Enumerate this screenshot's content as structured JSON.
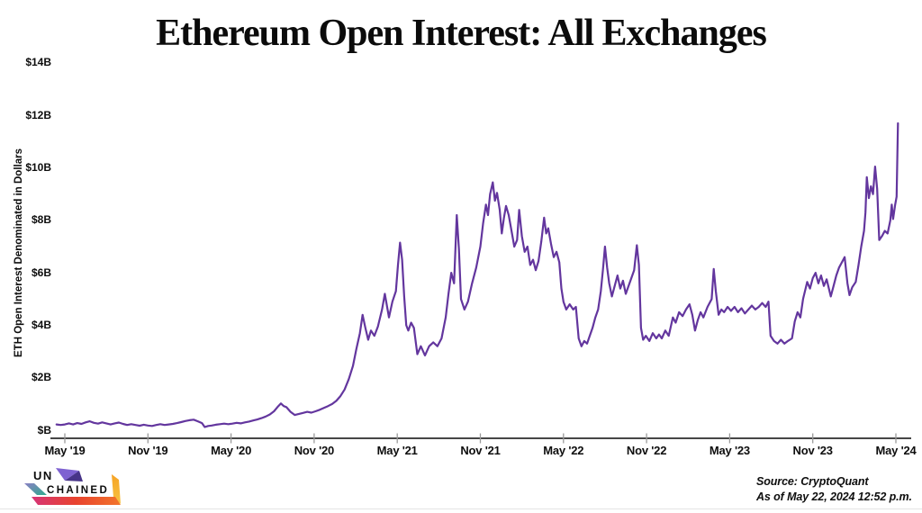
{
  "title": "Ethereum Open Interest: All Exchanges",
  "chart_data": {
    "type": "line",
    "title": "Ethereum Open Interest: All Exchanges",
    "ylabel": "ETH Open Interest Denominated in Dollars",
    "xlabel": "",
    "x_unit": "months since May 2019",
    "y_unit": "USD billions",
    "ylim": [
      0,
      14
    ],
    "xlim": [
      -0.6,
      60.2
    ],
    "grid": false,
    "legend": null,
    "line_color": "#63369e",
    "y_tick_labels": [
      "$B",
      "$2B",
      "$4B",
      "$6B",
      "$8B",
      "$10B",
      "$12B",
      "$14B"
    ],
    "x_tick_labels": [
      "May '19",
      "Nov '19",
      "May '20",
      "Nov '20",
      "May '21",
      "Nov '21",
      "May '22",
      "Nov '22",
      "May '23",
      "Nov '23",
      "May '24"
    ],
    "points": [
      [
        -0.6,
        0.22
      ],
      [
        -0.3,
        0.2
      ],
      [
        0,
        0.22
      ],
      [
        0.3,
        0.26
      ],
      [
        0.6,
        0.22
      ],
      [
        0.9,
        0.27
      ],
      [
        1.2,
        0.24
      ],
      [
        1.5,
        0.3
      ],
      [
        1.8,
        0.34
      ],
      [
        2.1,
        0.28
      ],
      [
        2.4,
        0.25
      ],
      [
        2.7,
        0.3
      ],
      [
        3,
        0.26
      ],
      [
        3.3,
        0.22
      ],
      [
        3.6,
        0.26
      ],
      [
        3.9,
        0.29
      ],
      [
        4.2,
        0.24
      ],
      [
        4.5,
        0.2
      ],
      [
        4.8,
        0.23
      ],
      [
        5.1,
        0.2
      ],
      [
        5.4,
        0.17
      ],
      [
        5.7,
        0.21
      ],
      [
        6,
        0.18
      ],
      [
        6.3,
        0.16
      ],
      [
        6.6,
        0.2
      ],
      [
        6.9,
        0.23
      ],
      [
        7.2,
        0.2
      ],
      [
        7.5,
        0.22
      ],
      [
        7.8,
        0.24
      ],
      [
        8.1,
        0.27
      ],
      [
        8.4,
        0.31
      ],
      [
        8.7,
        0.35
      ],
      [
        9,
        0.38
      ],
      [
        9.3,
        0.4
      ],
      [
        9.6,
        0.34
      ],
      [
        9.9,
        0.27
      ],
      [
        10.1,
        0.12
      ],
      [
        10.35,
        0.16
      ],
      [
        10.6,
        0.18
      ],
      [
        10.9,
        0.21
      ],
      [
        11.2,
        0.23
      ],
      [
        11.5,
        0.25
      ],
      [
        11.8,
        0.23
      ],
      [
        12.1,
        0.25
      ],
      [
        12.4,
        0.28
      ],
      [
        12.7,
        0.26
      ],
      [
        13,
        0.3
      ],
      [
        13.3,
        0.33
      ],
      [
        13.6,
        0.37
      ],
      [
        13.9,
        0.41
      ],
      [
        14.2,
        0.46
      ],
      [
        14.5,
        0.52
      ],
      [
        14.8,
        0.6
      ],
      [
        15.1,
        0.72
      ],
      [
        15.35,
        0.88
      ],
      [
        15.6,
        1.02
      ],
      [
        15.8,
        0.92
      ],
      [
        16,
        0.88
      ],
      [
        16.3,
        0.7
      ],
      [
        16.6,
        0.58
      ],
      [
        16.9,
        0.62
      ],
      [
        17.2,
        0.66
      ],
      [
        17.5,
        0.7
      ],
      [
        17.8,
        0.67
      ],
      [
        18.1,
        0.72
      ],
      [
        18.4,
        0.78
      ],
      [
        18.7,
        0.85
      ],
      [
        19,
        0.92
      ],
      [
        19.3,
        1
      ],
      [
        19.6,
        1.12
      ],
      [
        19.9,
        1.3
      ],
      [
        20.2,
        1.55
      ],
      [
        20.5,
        1.95
      ],
      [
        20.8,
        2.45
      ],
      [
        21.05,
        3.1
      ],
      [
        21.3,
        3.7
      ],
      [
        21.5,
        4.4
      ],
      [
        21.7,
        3.9
      ],
      [
        21.9,
        3.45
      ],
      [
        22.1,
        3.8
      ],
      [
        22.35,
        3.6
      ],
      [
        22.6,
        3.95
      ],
      [
        22.9,
        4.6
      ],
      [
        23.1,
        5.2
      ],
      [
        23.4,
        4.3
      ],
      [
        23.65,
        4.9
      ],
      [
        23.9,
        5.3
      ],
      [
        24.05,
        6.3
      ],
      [
        24.2,
        7.15
      ],
      [
        24.35,
        6.5
      ],
      [
        24.5,
        5.1
      ],
      [
        24.65,
        4
      ],
      [
        24.8,
        3.8
      ],
      [
        25,
        4.1
      ],
      [
        25.2,
        3.9
      ],
      [
        25.45,
        2.9
      ],
      [
        25.7,
        3.2
      ],
      [
        26,
        2.85
      ],
      [
        26.3,
        3.2
      ],
      [
        26.6,
        3.35
      ],
      [
        26.9,
        3.2
      ],
      [
        27.2,
        3.5
      ],
      [
        27.5,
        4.3
      ],
      [
        27.7,
        5.2
      ],
      [
        27.9,
        6
      ],
      [
        28.1,
        5.6
      ],
      [
        28.3,
        8.2
      ],
      [
        28.45,
        6.9
      ],
      [
        28.6,
        5
      ],
      [
        28.85,
        4.6
      ],
      [
        29.1,
        4.9
      ],
      [
        29.4,
        5.6
      ],
      [
        29.7,
        6.2
      ],
      [
        30,
        7
      ],
      [
        30.2,
        7.9
      ],
      [
        30.4,
        8.6
      ],
      [
        30.55,
        8.2
      ],
      [
        30.7,
        9
      ],
      [
        30.9,
        9.45
      ],
      [
        31.05,
        8.75
      ],
      [
        31.2,
        9.05
      ],
      [
        31.4,
        8.4
      ],
      [
        31.55,
        7.5
      ],
      [
        31.7,
        8.1
      ],
      [
        31.85,
        8.55
      ],
      [
        32.05,
        8.2
      ],
      [
        32.25,
        7.6
      ],
      [
        32.45,
        7
      ],
      [
        32.65,
        7.25
      ],
      [
        32.8,
        8.4
      ],
      [
        33,
        7.4
      ],
      [
        33.2,
        6.8
      ],
      [
        33.4,
        7
      ],
      [
        33.6,
        6.3
      ],
      [
        33.8,
        6.5
      ],
      [
        34,
        6.1
      ],
      [
        34.2,
        6.45
      ],
      [
        34.4,
        7.2
      ],
      [
        34.6,
        8.1
      ],
      [
        34.75,
        7.5
      ],
      [
        34.9,
        7.7
      ],
      [
        35.1,
        7.1
      ],
      [
        35.3,
        6.6
      ],
      [
        35.5,
        6.8
      ],
      [
        35.7,
        6.4
      ],
      [
        35.85,
        5.4
      ],
      [
        36,
        4.9
      ],
      [
        36.2,
        4.6
      ],
      [
        36.45,
        4.8
      ],
      [
        36.7,
        4.6
      ],
      [
        36.9,
        4.7
      ],
      [
        37.1,
        3.5
      ],
      [
        37.3,
        3.2
      ],
      [
        37.5,
        3.4
      ],
      [
        37.7,
        3.3
      ],
      [
        37.9,
        3.6
      ],
      [
        38.1,
        3.9
      ],
      [
        38.3,
        4.3
      ],
      [
        38.5,
        4.6
      ],
      [
        38.7,
        5.3
      ],
      [
        38.85,
        6.1
      ],
      [
        39,
        7
      ],
      [
        39.15,
        6.2
      ],
      [
        39.3,
        5.6
      ],
      [
        39.5,
        5.1
      ],
      [
        39.7,
        5.5
      ],
      [
        39.9,
        5.9
      ],
      [
        40.1,
        5.4
      ],
      [
        40.3,
        5.7
      ],
      [
        40.5,
        5.2
      ],
      [
        40.7,
        5.5
      ],
      [
        40.9,
        5.8
      ],
      [
        41.1,
        6.1
      ],
      [
        41.3,
        7.05
      ],
      [
        41.45,
        6.3
      ],
      [
        41.6,
        3.9
      ],
      [
        41.75,
        3.45
      ],
      [
        41.95,
        3.6
      ],
      [
        42.2,
        3.4
      ],
      [
        42.45,
        3.7
      ],
      [
        42.7,
        3.5
      ],
      [
        42.9,
        3.65
      ],
      [
        43.1,
        3.5
      ],
      [
        43.35,
        3.8
      ],
      [
        43.6,
        3.6
      ],
      [
        43.9,
        4.3
      ],
      [
        44.1,
        4.1
      ],
      [
        44.35,
        4.5
      ],
      [
        44.6,
        4.35
      ],
      [
        44.85,
        4.6
      ],
      [
        45.1,
        4.8
      ],
      [
        45.3,
        4.4
      ],
      [
        45.5,
        3.8
      ],
      [
        45.7,
        4.2
      ],
      [
        45.9,
        4.5
      ],
      [
        46.1,
        4.3
      ],
      [
        46.4,
        4.7
      ],
      [
        46.7,
        5
      ],
      [
        46.85,
        6.15
      ],
      [
        47,
        5.3
      ],
      [
        47.2,
        4.4
      ],
      [
        47.4,
        4.6
      ],
      [
        47.6,
        4.5
      ],
      [
        47.85,
        4.7
      ],
      [
        48.1,
        4.55
      ],
      [
        48.35,
        4.7
      ],
      [
        48.6,
        4.5
      ],
      [
        48.85,
        4.65
      ],
      [
        49.1,
        4.45
      ],
      [
        49.35,
        4.6
      ],
      [
        49.6,
        4.75
      ],
      [
        49.85,
        4.6
      ],
      [
        50.1,
        4.7
      ],
      [
        50.35,
        4.85
      ],
      [
        50.6,
        4.7
      ],
      [
        50.8,
        4.9
      ],
      [
        50.95,
        3.6
      ],
      [
        51.2,
        3.4
      ],
      [
        51.45,
        3.3
      ],
      [
        51.7,
        3.45
      ],
      [
        51.95,
        3.3
      ],
      [
        52.2,
        3.4
      ],
      [
        52.5,
        3.5
      ],
      [
        52.7,
        4.15
      ],
      [
        52.9,
        4.5
      ],
      [
        53.1,
        4.3
      ],
      [
        53.3,
        5
      ],
      [
        53.6,
        5.65
      ],
      [
        53.8,
        5.4
      ],
      [
        54,
        5.8
      ],
      [
        54.2,
        6
      ],
      [
        54.4,
        5.6
      ],
      [
        54.6,
        5.9
      ],
      [
        54.8,
        5.5
      ],
      [
        55,
        5.75
      ],
      [
        55.3,
        5.1
      ],
      [
        55.5,
        5.5
      ],
      [
        55.7,
        5.9
      ],
      [
        55.9,
        6.2
      ],
      [
        56.1,
        6.4
      ],
      [
        56.3,
        6.6
      ],
      [
        56.5,
        5.6
      ],
      [
        56.65,
        5.15
      ],
      [
        56.85,
        5.45
      ],
      [
        57.1,
        5.65
      ],
      [
        57.3,
        6.3
      ],
      [
        57.5,
        7
      ],
      [
        57.7,
        7.6
      ],
      [
        57.8,
        8.3
      ],
      [
        57.9,
        9.65
      ],
      [
        58.05,
        8.85
      ],
      [
        58.2,
        9.3
      ],
      [
        58.35,
        9
      ],
      [
        58.5,
        10.05
      ],
      [
        58.65,
        9.2
      ],
      [
        58.8,
        7.25
      ],
      [
        59,
        7.4
      ],
      [
        59.2,
        7.6
      ],
      [
        59.4,
        7.5
      ],
      [
        59.6,
        8
      ],
      [
        59.7,
        8.6
      ],
      [
        59.8,
        8.05
      ],
      [
        59.95,
        8.6
      ],
      [
        60.05,
        8.9
      ],
      [
        60.15,
        11.7
      ]
    ]
  },
  "footer": {
    "logo_line1": "UN",
    "logo_line2": "CHAINED",
    "logo_colors": [
      "#7e62d1",
      "#2fa98e",
      "#e8432e",
      "#f6a224"
    ],
    "source_line1": "Source: CryptoQuant",
    "source_line2": "As of May 22, 2024 12:52 p.m."
  }
}
